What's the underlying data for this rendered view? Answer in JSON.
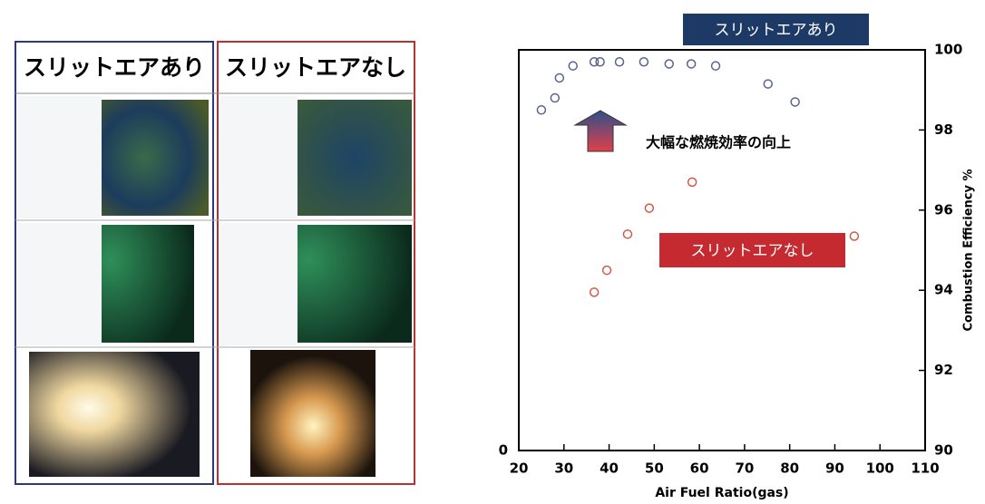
{
  "panel": {
    "headers": [
      "スリットエアあり",
      "スリットエアなし"
    ]
  },
  "chart_data": {
    "type": "scatter",
    "xlabel": "Air Fuel Ratio(gas)",
    "ylabel": "Combustion Efficiency %",
    "left_axis_label": "0",
    "annotation": "大幅な燃焼効率の向上",
    "xlim": [
      20,
      110
    ],
    "xticks": [
      20,
      30,
      40,
      50,
      60,
      70,
      80,
      90,
      100,
      110
    ],
    "ylim": [
      90,
      100
    ],
    "yticks": [
      90,
      92,
      94,
      96,
      98,
      100
    ],
    "series": [
      {
        "name": "スリットエアあり",
        "color": "#5a6290",
        "x": [
          25,
          28,
          29,
          32,
          36.7,
          38,
          42.3,
          47.7,
          53.3,
          58.2,
          63.6,
          75.2,
          81.2
        ],
        "values": [
          98.5,
          98.8,
          99.3,
          99.6,
          99.7,
          99.7,
          99.7,
          99.7,
          99.65,
          99.65,
          99.6,
          99.15,
          98.7
        ]
      },
      {
        "name": "スリットエアなし",
        "color": "#cf5a4a",
        "x": [
          36.7,
          39.5,
          44.1,
          48.9,
          58.4,
          94.3
        ],
        "values": [
          93.95,
          94.5,
          95.4,
          96.05,
          96.7,
          95.35
        ]
      }
    ]
  }
}
